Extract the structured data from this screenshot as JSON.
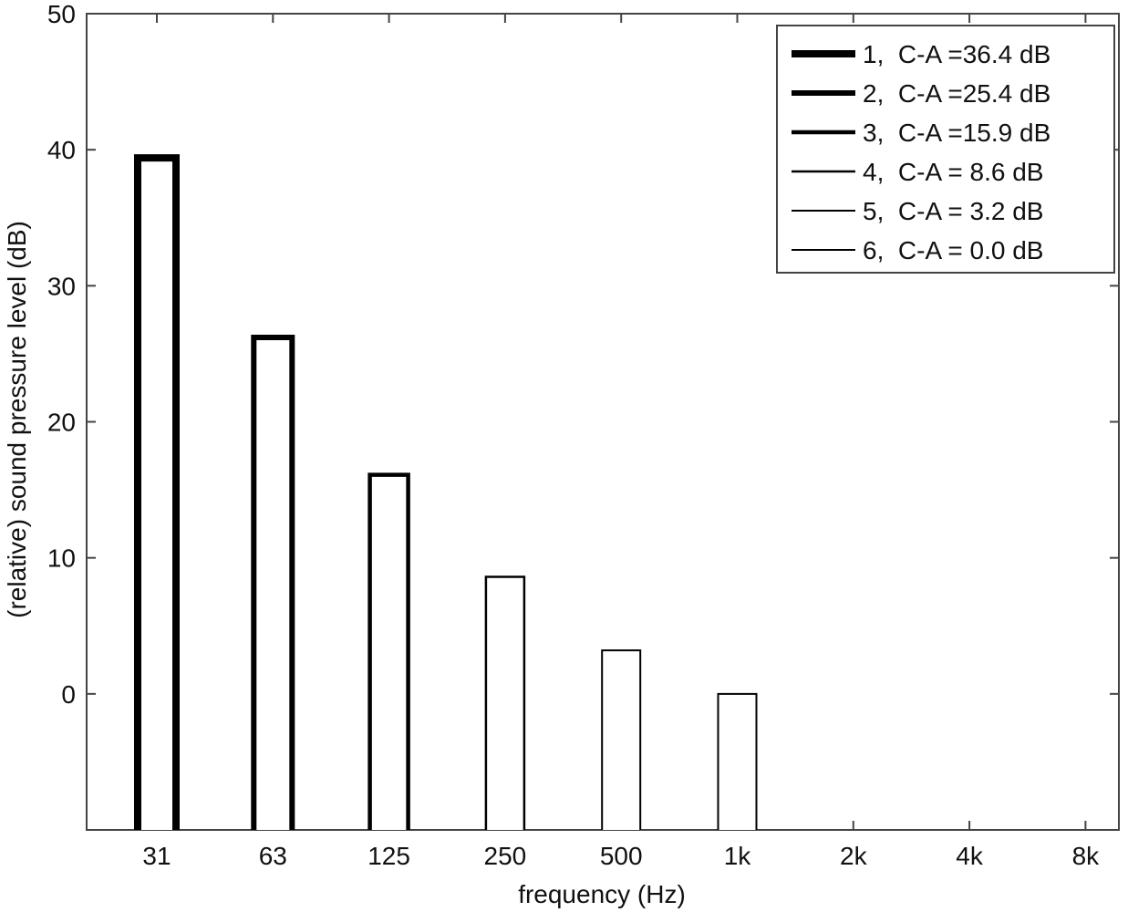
{
  "chart_data": {
    "type": "bar",
    "title": "",
    "xlabel": "frequency (Hz)",
    "ylabel": "(relative) sound pressure level (dB)",
    "categories": [
      "31",
      "63",
      "125",
      "250",
      "500",
      "1k",
      "2k",
      "4k",
      "8k"
    ],
    "ylim": [
      -10,
      50
    ],
    "yticks": [
      0,
      10,
      20,
      30,
      40,
      50
    ],
    "grid": false,
    "legend_position": "top-right",
    "series": [
      {
        "name": "1,  C-A =36.4 dB",
        "category": "31",
        "value": 39.4
      },
      {
        "name": "2,  C-A =25.4 dB",
        "category": "63",
        "value": 26.2
      },
      {
        "name": "3,  C-A =15.9 dB",
        "category": "125",
        "value": 16.1
      },
      {
        "name": "4,  C-A = 8.6 dB",
        "category": "250",
        "value": 8.6
      },
      {
        "name": "5,  C-A = 3.2 dB",
        "category": "500",
        "value": 3.2
      },
      {
        "name": "6,  C-A = 0.0 dB",
        "category": "1k",
        "value": 0.0
      }
    ],
    "colors": {
      "bar_stroke": "#000000",
      "bar_fill": "#ffffff",
      "axis": "#444444"
    }
  }
}
